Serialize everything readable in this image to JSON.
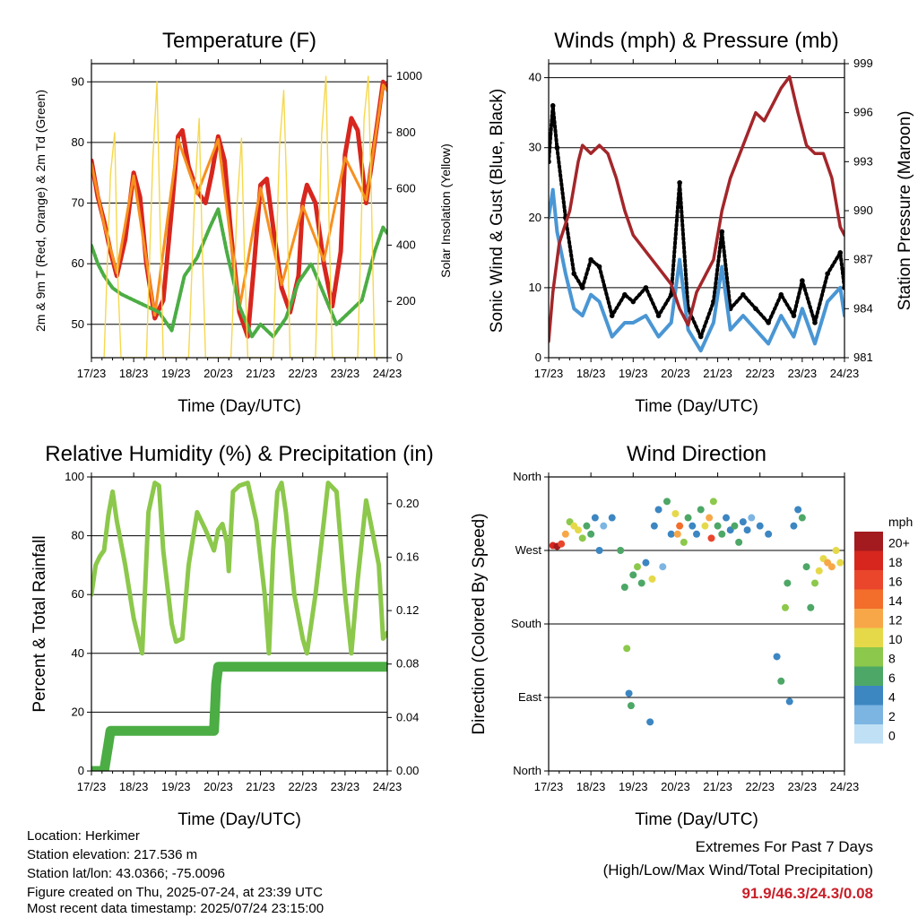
{
  "chart_data": [
    {
      "type": "line",
      "title": "Temperature (F)",
      "xlabel": "Time (Day/UTC)",
      "ylabel": "2m & 9m T (Red, Orange) & 2m Td (Green)",
      "y2label": "Solar Insolation (Yellow)",
      "x_ticks": [
        "17/23",
        "18/23",
        "19/23",
        "20/23",
        "21/23",
        "22/23",
        "23/23",
        "24/23"
      ],
      "xlim": [
        0,
        7
      ],
      "ylim": [
        44.5,
        93
      ],
      "y_ticks": [
        50,
        60,
        70,
        80,
        90
      ],
      "y2lim": [
        0,
        1045
      ],
      "y2_ticks": [
        0,
        200,
        400,
        600,
        800,
        1000
      ],
      "grid": "horizontal",
      "series": [
        {
          "name": "2m T",
          "color": "#d7261e",
          "x": [
            0,
            0.15,
            0.3,
            0.45,
            0.6,
            0.8,
            1.0,
            1.15,
            1.3,
            1.5,
            1.7,
            1.9,
            2.05,
            2.15,
            2.3,
            2.5,
            2.7,
            2.85,
            3.0,
            3.15,
            3.3,
            3.5,
            3.7,
            3.85,
            4.0,
            4.15,
            4.3,
            4.5,
            4.7,
            4.9,
            5.0,
            5.1,
            5.3,
            5.5,
            5.7,
            5.9,
            6.0,
            6.15,
            6.3,
            6.5,
            6.7,
            6.9,
            7.0
          ],
          "values": [
            77,
            71,
            67,
            62,
            58,
            64,
            75,
            71,
            60,
            51,
            54,
            69,
            81,
            82,
            76,
            72,
            70,
            75,
            81,
            77,
            65,
            52,
            48,
            60,
            73,
            74,
            66,
            56,
            52,
            58,
            70,
            73,
            70,
            60,
            53,
            62,
            78,
            84,
            82,
            70,
            80,
            90,
            89
          ]
        },
        {
          "name": "9m T",
          "color": "#f7901e",
          "x": [
            0,
            0.3,
            0.6,
            1.0,
            1.5,
            2.05,
            2.5,
            3.0,
            3.5,
            4.0,
            4.5,
            5.0,
            5.5,
            6.0,
            6.5,
            6.9,
            7.0
          ],
          "values": [
            76.5,
            66.5,
            58.5,
            74.5,
            51.5,
            80.5,
            71.5,
            80.5,
            52.5,
            72.5,
            56.5,
            69.5,
            60.5,
            77.5,
            70.5,
            89.5,
            88.5
          ]
        },
        {
          "name": "2m Td",
          "color": "#4bad44",
          "x": [
            0,
            0.15,
            0.3,
            0.5,
            0.7,
            1.0,
            1.3,
            1.6,
            1.9,
            2.2,
            2.5,
            2.8,
            3.0,
            3.2,
            3.5,
            3.8,
            4.0,
            4.3,
            4.6,
            4.9,
            5.2,
            5.5,
            5.8,
            6.1,
            6.4,
            6.7,
            6.9,
            7.0
          ],
          "values": [
            63,
            60,
            58,
            56,
            55,
            54,
            53,
            52,
            49,
            58,
            61,
            66,
            69,
            62,
            53,
            48,
            50,
            48,
            51,
            57,
            60,
            55,
            50,
            52,
            54,
            62,
            66,
            65
          ]
        },
        {
          "name": "Solar Insolation",
          "axis": "y2",
          "color": "#f6d84e",
          "x": [
            0.3,
            0.45,
            0.55,
            0.62,
            0.7,
            1.3,
            1.45,
            1.55,
            1.62,
            1.7,
            2.3,
            2.45,
            2.55,
            2.62,
            2.7,
            3.3,
            3.45,
            3.55,
            3.62,
            3.7,
            4.3,
            4.45,
            4.55,
            4.62,
            4.7,
            5.3,
            5.45,
            5.55,
            5.62,
            5.7,
            6.3,
            6.45,
            6.55,
            6.62,
            6.7,
            6.9
          ],
          "values": [
            0,
            650,
            800,
            300,
            0,
            0,
            700,
            980,
            500,
            0,
            0,
            600,
            850,
            400,
            0,
            0,
            550,
            780,
            350,
            0,
            0,
            750,
            950,
            600,
            0,
            0,
            800,
            1000,
            500,
            0,
            0,
            850,
            1000,
            600,
            0,
            0
          ]
        }
      ]
    },
    {
      "type": "line",
      "title": "Winds (mph) & Pressure (mb)",
      "xlabel": "Time (Day/UTC)",
      "ylabel": "Sonic Wind & Gust (Blue, Black)",
      "y2label": "Station Pressure (Maroon)",
      "x_ticks": [
        "17/23",
        "18/23",
        "19/23",
        "20/23",
        "21/23",
        "22/23",
        "23/23",
        "24/23"
      ],
      "xlim": [
        0,
        7
      ],
      "ylim": [
        0,
        42
      ],
      "y_ticks": [
        0,
        10,
        20,
        30,
        40
      ],
      "y2lim": [
        981,
        999
      ],
      "y2_ticks": [
        981,
        984,
        987,
        990,
        993,
        996,
        999
      ],
      "grid": "horizontal",
      "series": [
        {
          "name": "Gust",
          "color": "#000000",
          "x": [
            0,
            0.1,
            0.2,
            0.4,
            0.6,
            0.8,
            1.0,
            1.2,
            1.5,
            1.8,
            2.0,
            2.3,
            2.6,
            2.9,
            3.1,
            3.3,
            3.6,
            3.9,
            4.1,
            4.3,
            4.6,
            4.9,
            5.2,
            5.5,
            5.8,
            6.0,
            6.3,
            6.6,
            6.9,
            7.0
          ],
          "values": [
            28,
            36,
            30,
            20,
            12,
            10,
            14,
            13,
            6,
            9,
            8,
            10,
            6,
            9,
            25,
            7,
            3,
            8,
            18,
            7,
            9,
            7,
            5,
            9,
            6,
            11,
            5,
            12,
            15,
            10
          ]
        },
        {
          "name": "Wind",
          "color": "#4a96d4",
          "x": [
            0,
            0.1,
            0.2,
            0.4,
            0.6,
            0.8,
            1.0,
            1.2,
            1.5,
            1.8,
            2.0,
            2.3,
            2.6,
            2.9,
            3.1,
            3.3,
            3.6,
            3.9,
            4.1,
            4.3,
            4.6,
            4.9,
            5.2,
            5.5,
            5.8,
            6.0,
            6.3,
            6.6,
            6.9,
            7.0
          ],
          "values": [
            20,
            24,
            18,
            12,
            7,
            6,
            9,
            8,
            3,
            5,
            5,
            6,
            3,
            5,
            14,
            4,
            1,
            5,
            13,
            4,
            6,
            4,
            2,
            6,
            3,
            7,
            2,
            8,
            10,
            6
          ]
        },
        {
          "name": "Station Pressure",
          "axis": "y2",
          "color": "#a3262a",
          "x": [
            0,
            0.1,
            0.25,
            0.5,
            0.7,
            0.8,
            1.0,
            1.2,
            1.4,
            1.6,
            1.8,
            2.0,
            2.3,
            2.6,
            2.9,
            3.1,
            3.3,
            3.5,
            3.7,
            3.9,
            4.1,
            4.3,
            4.6,
            4.9,
            5.1,
            5.3,
            5.5,
            5.7,
            5.9,
            6.1,
            6.3,
            6.5,
            6.7,
            6.9,
            7.0
          ],
          "values": [
            982,
            985,
            988,
            990,
            993,
            994,
            993.5,
            994,
            993.5,
            992,
            990,
            988.5,
            987.5,
            986.5,
            985.5,
            984,
            983,
            985,
            986,
            987,
            990,
            992,
            994,
            996,
            995.5,
            996.5,
            997.5,
            998.2,
            996,
            994,
            993.5,
            993.5,
            992,
            989,
            988.5
          ]
        }
      ]
    },
    {
      "type": "line",
      "title": "Relative Humidity (%) & Precipitation (in)",
      "xlabel": "Time (Day/UTC)",
      "ylabel": "Percent & Total Rainfall",
      "x_ticks": [
        "17/23",
        "18/23",
        "19/23",
        "20/23",
        "21/23",
        "22/23",
        "23/23",
        "24/23"
      ],
      "xlim": [
        0,
        7
      ],
      "ylim": [
        0,
        100
      ],
      "y_ticks": [
        0,
        20,
        40,
        60,
        80,
        100
      ],
      "y2lim": [
        0,
        0.22
      ],
      "y2_ticks": [
        "0.00",
        "0.04",
        "0.08",
        "0.12",
        "0.16",
        "0.20"
      ],
      "grid": "horizontal",
      "series": [
        {
          "name": "Relative Humidity",
          "color": "#8cc84b",
          "x": [
            0,
            0.1,
            0.2,
            0.3,
            0.4,
            0.5,
            0.6,
            0.8,
            1.0,
            1.2,
            1.35,
            1.5,
            1.6,
            1.7,
            1.9,
            2.0,
            2.15,
            2.3,
            2.5,
            2.7,
            2.9,
            3.0,
            3.1,
            3.2,
            3.25,
            3.35,
            3.5,
            3.7,
            3.9,
            4.1,
            4.2,
            4.3,
            4.4,
            4.5,
            4.6,
            4.8,
            5.0,
            5.1,
            5.3,
            5.5,
            5.6,
            5.8,
            6.0,
            6.15,
            6.3,
            6.5,
            6.6,
            6.8,
            6.9,
            7.0
          ],
          "values": [
            60,
            70,
            73,
            75,
            87,
            95,
            85,
            70,
            52,
            40,
            88,
            98,
            97,
            75,
            50,
            44,
            45,
            70,
            88,
            82,
            75,
            82,
            84,
            78,
            68,
            95,
            97,
            98,
            85,
            60,
            40,
            75,
            95,
            98,
            88,
            60,
            45,
            40,
            60,
            85,
            98,
            95,
            60,
            40,
            65,
            92,
            85,
            70,
            45,
            47
          ]
        },
        {
          "name": "Total Precipitation",
          "axis": "y2",
          "color": "#4bad44",
          "x": [
            0,
            0.2,
            0.3,
            0.35,
            0.4,
            0.45,
            2.0,
            2.9,
            2.95,
            3.0,
            7.0
          ],
          "values": [
            0,
            0,
            0,
            0.01,
            0.02,
            0.03,
            0.03,
            0.03,
            0.065,
            0.078,
            0.078
          ]
        }
      ]
    },
    {
      "type": "scatter",
      "title": "Wind Direction",
      "xlabel": "Time (Day/UTC)",
      "ylabel": "Direction (Colored By Speed)",
      "x_ticks": [
        "17/23",
        "18/23",
        "19/23",
        "20/23",
        "21/23",
        "22/23",
        "23/23",
        "24/23"
      ],
      "xlim": [
        0,
        7
      ],
      "ylim": [
        0,
        360
      ],
      "y_tick_labels": [
        "North",
        "East",
        "South",
        "West",
        "North"
      ],
      "y_tick_values": [
        0,
        90,
        180,
        270,
        360
      ],
      "grid": "horizontal",
      "legend": {
        "title": "mph",
        "position": "right",
        "labels": [
          "20+",
          "18",
          "16",
          "14",
          "12",
          "10",
          "8",
          "6",
          "4",
          "2",
          "0"
        ],
        "colors": [
          "#a31a1f",
          "#d7261e",
          "#e9462c",
          "#f36d2b",
          "#f8a748",
          "#e5d94a",
          "#8cc84b",
          "#4da766",
          "#3c86c2",
          "#7cb5e2",
          "#bfe0f5"
        ]
      },
      "points": [
        [
          0.1,
          276,
          18
        ],
        [
          0.2,
          275,
          20
        ],
        [
          0.3,
          278,
          16
        ],
        [
          0.4,
          290,
          12
        ],
        [
          0.5,
          305,
          8
        ],
        [
          0.6,
          300,
          10
        ],
        [
          0.7,
          295,
          9
        ],
        [
          0.8,
          285,
          7
        ],
        [
          0.9,
          300,
          5
        ],
        [
          1.0,
          290,
          6
        ],
        [
          1.1,
          310,
          4
        ],
        [
          1.2,
          270,
          3
        ],
        [
          1.3,
          300,
          2
        ],
        [
          1.5,
          310,
          4
        ],
        [
          1.7,
          270,
          5
        ],
        [
          1.8,
          225,
          6
        ],
        [
          1.85,
          150,
          7
        ],
        [
          1.9,
          95,
          4
        ],
        [
          1.95,
          80,
          6
        ],
        [
          2.0,
          240,
          5
        ],
        [
          2.1,
          250,
          8
        ],
        [
          2.2,
          230,
          6
        ],
        [
          2.3,
          255,
          4
        ],
        [
          2.4,
          60,
          3
        ],
        [
          2.45,
          235,
          9
        ],
        [
          2.5,
          300,
          4
        ],
        [
          2.6,
          320,
          3
        ],
        [
          2.7,
          250,
          2
        ],
        [
          2.8,
          330,
          5
        ],
        [
          2.9,
          290,
          4
        ],
        [
          3.0,
          315,
          9
        ],
        [
          3.05,
          290,
          12
        ],
        [
          3.1,
          300,
          14
        ],
        [
          3.2,
          280,
          8
        ],
        [
          3.3,
          310,
          6
        ],
        [
          3.4,
          300,
          4
        ],
        [
          3.5,
          290,
          3
        ],
        [
          3.6,
          320,
          6
        ],
        [
          3.7,
          300,
          10
        ],
        [
          3.8,
          310,
          12
        ],
        [
          3.85,
          285,
          16
        ],
        [
          3.9,
          330,
          8
        ],
        [
          4.0,
          300,
          6
        ],
        [
          4.1,
          290,
          5
        ],
        [
          4.2,
          310,
          4
        ],
        [
          4.3,
          295,
          3
        ],
        [
          4.4,
          300,
          6
        ],
        [
          4.5,
          280,
          5
        ],
        [
          4.6,
          305,
          4
        ],
        [
          4.7,
          295,
          3
        ],
        [
          4.8,
          310,
          2
        ],
        [
          5.0,
          300,
          4
        ],
        [
          5.2,
          290,
          3
        ],
        [
          5.4,
          140,
          4
        ],
        [
          5.5,
          110,
          5
        ],
        [
          5.6,
          200,
          8
        ],
        [
          5.65,
          230,
          6
        ],
        [
          5.7,
          85,
          3
        ],
        [
          5.8,
          300,
          4
        ],
        [
          5.9,
          320,
          3
        ],
        [
          6.0,
          310,
          5
        ],
        [
          6.1,
          250,
          6
        ],
        [
          6.2,
          200,
          5
        ],
        [
          6.3,
          230,
          8
        ],
        [
          6.4,
          245,
          9
        ],
        [
          6.5,
          260,
          10
        ],
        [
          6.6,
          255,
          11
        ],
        [
          6.7,
          250,
          12
        ],
        [
          6.8,
          270,
          10
        ],
        [
          6.9,
          255,
          9
        ]
      ]
    }
  ],
  "info": {
    "location": "Location: Herkimer",
    "elevation": "Station elevation: 217.536 m",
    "latlon": "Station lat/lon: 43.0366; -75.0096",
    "created": "Figure created on Thu, 2025-07-24, at 23:39 UTC",
    "timestamp": "Most recent data timestamp: 2025/07/24 23:15:00"
  },
  "extremes": {
    "title": "Extremes For Past 7 Days",
    "subtitle": "(High/Low/Max Wind/Total Precipitation)",
    "values": "91.9/46.3/24.3/0.08"
  },
  "colors": {
    "axis": "#000000",
    "grid": "#000000",
    "extremes_value": "#c8202a"
  }
}
